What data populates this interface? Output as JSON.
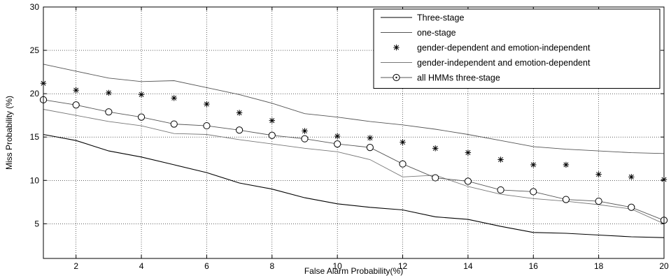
{
  "chart_data": {
    "type": "line",
    "title": "",
    "xlabel": "False Alarm Probability(%)",
    "ylabel": "Miss Probability (%)",
    "xlim": [
      1,
      20
    ],
    "ylim": [
      1,
      30
    ],
    "xticks": [
      2,
      4,
      6,
      8,
      10,
      12,
      14,
      16,
      18,
      20
    ],
    "yticks": [
      5,
      10,
      15,
      20,
      25,
      30
    ],
    "grid": true,
    "legend_position": "top-right",
    "x": [
      1,
      2,
      3,
      4,
      5,
      6,
      7,
      8,
      9,
      10,
      11,
      12,
      13,
      14,
      15,
      16,
      17,
      18,
      19,
      20
    ],
    "series": [
      {
        "name": "Three-stage",
        "style": "solid",
        "color": "#000000",
        "values": [
          15.3,
          14.6,
          13.4,
          12.7,
          11.8,
          10.9,
          9.7,
          9.0,
          8.0,
          7.3,
          6.9,
          6.6,
          5.8,
          5.5,
          4.7,
          4.0,
          3.9,
          3.7,
          3.5,
          3.4
        ]
      },
      {
        "name": "one-stage",
        "style": "solid",
        "color": "#555555",
        "values": [
          23.4,
          22.6,
          21.8,
          21.4,
          21.5,
          20.7,
          19.9,
          18.9,
          17.7,
          17.3,
          16.8,
          16.4,
          15.9,
          15.3,
          14.6,
          13.9,
          13.6,
          13.4,
          13.2,
          13.1
        ]
      },
      {
        "name": "gender-dependent and emotion-independent",
        "style": "marker-star",
        "color": "#000000",
        "values": [
          21.2,
          20.4,
          20.1,
          19.9,
          19.5,
          18.8,
          17.8,
          16.9,
          15.7,
          15.1,
          14.9,
          14.4,
          13.7,
          13.2,
          12.4,
          11.8,
          11.8,
          10.7,
          10.4,
          10.1
        ]
      },
      {
        "name": "gender-independent and emotion-dependent",
        "style": "solid",
        "color": "#777777",
        "values": [
          18.2,
          17.5,
          16.8,
          16.3,
          15.4,
          15.3,
          14.7,
          14.2,
          13.7,
          13.3,
          12.4,
          10.4,
          10.6,
          9.3,
          8.4,
          7.9,
          7.6,
          7.2,
          6.7,
          5.0
        ]
      },
      {
        "name": "all HMMs three-stage",
        "style": "marker-circle",
        "color": "#555555",
        "values": [
          19.3,
          18.7,
          17.9,
          17.3,
          16.5,
          16.3,
          15.8,
          15.2,
          14.8,
          14.2,
          13.8,
          11.9,
          10.3,
          9.9,
          8.9,
          8.7,
          7.8,
          7.6,
          6.9,
          5.4
        ]
      }
    ]
  }
}
